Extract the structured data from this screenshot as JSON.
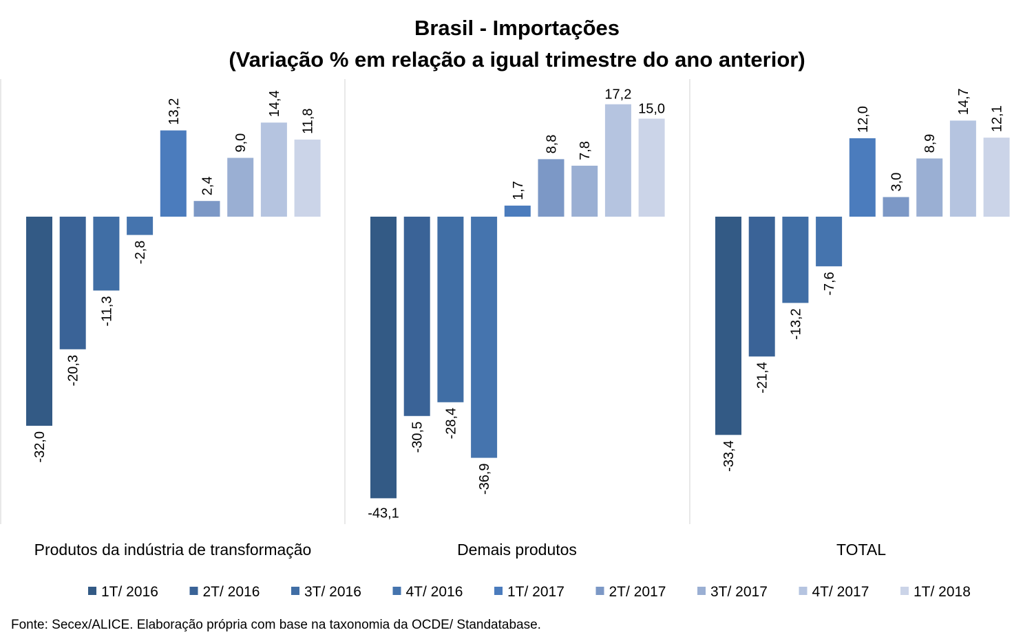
{
  "chart_data": {
    "type": "bar",
    "title": "Brasil - Importações",
    "subtitle": "(Variação % em relação a igual trimestre do ano anterior)",
    "categories": [
      "Produtos da indústria de transformação",
      "Demais produtos",
      "TOTAL"
    ],
    "series": [
      {
        "name": "1T/ 2016",
        "values": [
          -32.0,
          -43.1,
          -33.4
        ],
        "labels": [
          "-32,0",
          "-43,1",
          "-33,4"
        ],
        "color": "#335a85"
      },
      {
        "name": "2T/ 2016",
        "values": [
          -20.3,
          -30.5,
          -21.4
        ],
        "labels": [
          "-20,3",
          "-30,5",
          "-21,4"
        ],
        "color": "#3a6397"
      },
      {
        "name": "3T/ 2016",
        "values": [
          -11.3,
          -28.4,
          -13.2
        ],
        "labels": [
          "-11,3",
          "-28,4",
          "-13,2"
        ],
        "color": "#406ea5"
      },
      {
        "name": "4T/ 2016",
        "values": [
          -2.8,
          -36.9,
          -7.6
        ],
        "labels": [
          "-2,8",
          "-36,9",
          "-7,6"
        ],
        "color": "#4574ae"
      },
      {
        "name": "1T/ 2017",
        "values": [
          13.2,
          1.7,
          12.0
        ],
        "labels": [
          "13,2",
          "1,7",
          "12,0"
        ],
        "color": "#4b7cbd"
      },
      {
        "name": "2T/ 2017",
        "values": [
          2.4,
          8.8,
          3.0
        ],
        "labels": [
          "2,4",
          "8,8",
          "3,0"
        ],
        "color": "#7c98c6"
      },
      {
        "name": "3T/ 2017",
        "values": [
          9.0,
          7.8,
          8.9
        ],
        "labels": [
          "9,0",
          "7,8",
          "8,9"
        ],
        "color": "#9aafd3"
      },
      {
        "name": "4T/ 2017",
        "values": [
          14.4,
          17.2,
          14.7
        ],
        "labels": [
          "14,4",
          "17,2",
          "14,7"
        ],
        "color": "#b5c4e0"
      },
      {
        "name": "1T/ 2018",
        "values": [
          11.8,
          15.0,
          12.1
        ],
        "labels": [
          "11,8",
          "15,0",
          "12,1"
        ],
        "color": "#cbd4e8"
      }
    ],
    "ylim": [
      -47,
      21
    ],
    "grid": false,
    "legend": "bottom",
    "source": "Fonte: Secex/ALICE. Elaboração própria com base na taxonomia da OCDE/ Standatabase."
  }
}
